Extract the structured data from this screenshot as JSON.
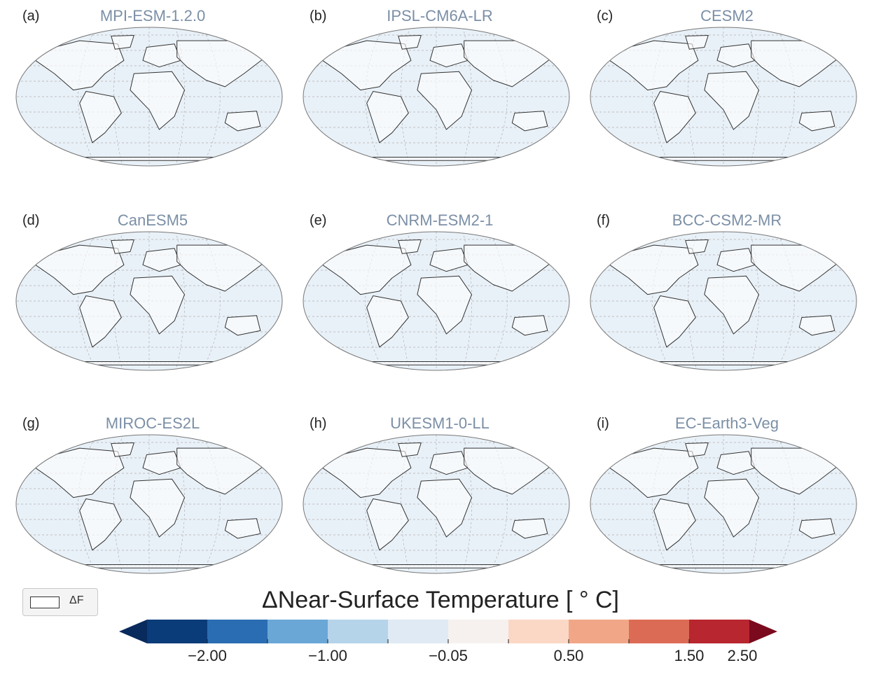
{
  "panels": [
    {
      "letter": "(a)",
      "title": "MPI-ESM-1.2.0"
    },
    {
      "letter": "(b)",
      "title": "IPSL-CM6A-LR"
    },
    {
      "letter": "(c)",
      "title": "CESM2"
    },
    {
      "letter": "(d)",
      "title": "CanESM5"
    },
    {
      "letter": "(e)",
      "title": "CNRM-ESM2-1"
    },
    {
      "letter": "(f)",
      "title": "BCC-CSM2-MR"
    },
    {
      "letter": "(g)",
      "title": "MIROC-ES2L"
    },
    {
      "letter": "(h)",
      "title": "UKESM1-0-LL"
    },
    {
      "letter": "(i)",
      "title": "EC-Earth3-Veg"
    }
  ],
  "legend": {
    "label": "ΔF"
  },
  "colorbar": {
    "title": "ΔNear-Surface Temperature [ ° C]",
    "tick_labels": [
      "−2.00",
      "−1.00",
      "−0.05",
      "0.50",
      "1.50",
      "2.50"
    ],
    "colors": [
      "#0b3c7a",
      "#2a6db3",
      "#6aa7d6",
      "#b5d4ea",
      "#dfeaf4",
      "#f6f1ef",
      "#fbd8c5",
      "#f1a787",
      "#dc6b55",
      "#b8262f"
    ],
    "under_color": "#082a5c",
    "over_color": "#7b0a1e"
  },
  "colors": {
    "ocean": "#e9f1f8",
    "map_border": "#777777",
    "coastline": "#333333",
    "gridline": "#b0b0b0"
  }
}
